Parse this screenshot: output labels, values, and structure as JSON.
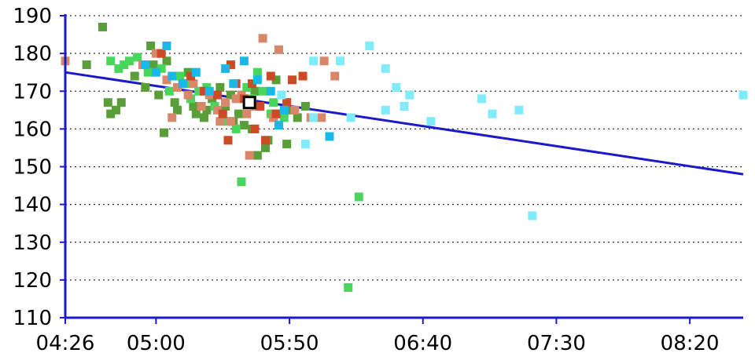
{
  "chart_data": {
    "type": "scatter",
    "title": "",
    "xlabel": "",
    "ylabel": "",
    "x_unit": "time (hh:mm)",
    "xlim": [
      "04:26",
      "08:40"
    ],
    "ylim": [
      110,
      190
    ],
    "x_ticks": [
      "04:26",
      "05:00",
      "05:50",
      "06:40",
      "07:30",
      "08:20"
    ],
    "y_ticks": [
      110,
      120,
      130,
      140,
      150,
      160,
      170,
      180,
      190
    ],
    "grid": "horizontal dotted",
    "legend": "none",
    "colors": {
      "axis": "#1a1acc",
      "trend": "#1a1acc",
      "grid": "#333333",
      "highlight_fill": "#ffffff",
      "highlight_stroke": "#000000"
    },
    "series": [
      {
        "color": "#5a9e3a",
        "points": [
          [
            "04:40",
            187
          ],
          [
            "04:34",
            177
          ],
          [
            "04:42",
            167
          ],
          [
            "04:45",
            165
          ],
          [
            "04:43",
            164
          ],
          [
            "04:47",
            167
          ],
          [
            "04:52",
            174
          ],
          [
            "04:56",
            171
          ],
          [
            "04:58",
            182
          ],
          [
            "04:59",
            177
          ],
          [
            "05:01",
            169
          ],
          [
            "05:04",
            178
          ],
          [
            "05:07",
            167
          ],
          [
            "05:08",
            165
          ],
          [
            "05:12",
            175
          ],
          [
            "05:14",
            166
          ],
          [
            "05:15",
            164
          ],
          [
            "05:18",
            163
          ],
          [
            "05:21",
            168
          ],
          [
            "05:24",
            171
          ],
          [
            "05:26",
            166
          ],
          [
            "05:28",
            169
          ],
          [
            "05:31",
            164
          ],
          [
            "05:33",
            161
          ],
          [
            "05:35",
            167
          ],
          [
            "05:37",
            170
          ],
          [
            "05:38",
            153
          ],
          [
            "05:41",
            155
          ],
          [
            "05:42",
            157
          ],
          [
            "05:44",
            163
          ],
          [
            "05:45",
            173
          ],
          [
            "05:47",
            164
          ],
          [
            "05:49",
            156
          ],
          [
            "05:50",
            165
          ],
          [
            "05:53",
            163
          ],
          [
            "05:56",
            166
          ],
          [
            "05:03",
            159
          ],
          [
            "05:10",
            172
          ],
          [
            "05:19",
            165
          ],
          [
            "05:29",
            162
          ],
          [
            "05:36",
            160
          ]
        ]
      },
      {
        "color": "#49d65c",
        "points": [
          [
            "04:43",
            178
          ],
          [
            "04:46",
            176
          ],
          [
            "04:48",
            177
          ],
          [
            "04:53",
            179
          ],
          [
            "04:57",
            175
          ],
          [
            "05:02",
            176
          ],
          [
            "05:05",
            170
          ],
          [
            "05:09",
            174
          ],
          [
            "05:11",
            172
          ],
          [
            "05:13",
            168
          ],
          [
            "05:16",
            170
          ],
          [
            "05:19",
            171
          ],
          [
            "05:22",
            166
          ],
          [
            "05:25",
            164
          ],
          [
            "05:27",
            162
          ],
          [
            "05:30",
            160
          ],
          [
            "05:32",
            169
          ],
          [
            "05:34",
            171
          ],
          [
            "05:36",
            168
          ],
          [
            "05:38",
            175
          ],
          [
            "05:40",
            170
          ],
          [
            "05:43",
            164
          ],
          [
            "05:44",
            167
          ],
          [
            "05:48",
            163
          ],
          [
            "05:32",
            146
          ],
          [
            "06:16",
            142
          ],
          [
            "06:12",
            118
          ],
          [
            "04:50",
            178
          ]
        ]
      },
      {
        "color": "#d8886a",
        "points": [
          [
            "04:26",
            178
          ],
          [
            "04:55",
            177
          ],
          [
            "05:00",
            180
          ],
          [
            "05:04",
            173
          ],
          [
            "05:08",
            171
          ],
          [
            "05:12",
            169
          ],
          [
            "05:14",
            172
          ],
          [
            "05:17",
            166
          ],
          [
            "05:20",
            169
          ],
          [
            "05:23",
            165
          ],
          [
            "05:26",
            167
          ],
          [
            "05:28",
            162
          ],
          [
            "05:30",
            168
          ],
          [
            "05:32",
            169
          ],
          [
            "05:34",
            164
          ],
          [
            "05:35",
            153
          ],
          [
            "05:37",
            166
          ],
          [
            "05:40",
            184
          ],
          [
            "05:44",
            163
          ],
          [
            "05:46",
            181
          ],
          [
            "05:49",
            167
          ],
          [
            "05:52",
            165
          ],
          [
            "05:58",
            163
          ],
          [
            "06:02",
            163
          ],
          [
            "06:03",
            178
          ],
          [
            "06:07",
            174
          ],
          [
            "05:24",
            162
          ],
          [
            "05:06",
            163
          ]
        ]
      },
      {
        "color": "#cc4a26",
        "points": [
          [
            "05:02",
            180
          ],
          [
            "05:13",
            174
          ],
          [
            "05:18",
            170
          ],
          [
            "05:23",
            169
          ],
          [
            "05:27",
            157
          ],
          [
            "05:28",
            177
          ],
          [
            "05:30",
            172
          ],
          [
            "05:33",
            168
          ],
          [
            "05:36",
            172
          ],
          [
            "05:37",
            160
          ],
          [
            "05:41",
            157
          ],
          [
            "05:43",
            174
          ],
          [
            "05:45",
            164
          ],
          [
            "05:49",
            167
          ],
          [
            "05:51",
            173
          ],
          [
            "05:55",
            174
          ],
          [
            "05:25",
            164
          ],
          [
            "05:39",
            166
          ]
        ]
      },
      {
        "color": "#1ab8e8",
        "points": [
          [
            "04:56",
            177
          ],
          [
            "05:00",
            175
          ],
          [
            "05:04",
            182
          ],
          [
            "05:06",
            174
          ],
          [
            "05:10",
            172
          ],
          [
            "05:26",
            176
          ],
          [
            "05:29",
            172
          ],
          [
            "05:33",
            178
          ],
          [
            "05:38",
            173
          ],
          [
            "05:43",
            170
          ],
          [
            "05:46",
            161
          ],
          [
            "05:48",
            165
          ],
          [
            "06:05",
            158
          ],
          [
            "05:20",
            170
          ],
          [
            "05:15",
            175
          ]
        ]
      },
      {
        "color": "#80ecfb",
        "points": [
          [
            "05:56",
            156
          ],
          [
            "05:59",
            178
          ],
          [
            "06:09",
            178
          ],
          [
            "06:13",
            163
          ],
          [
            "06:20",
            182
          ],
          [
            "06:26",
            165
          ],
          [
            "06:26",
            176
          ],
          [
            "06:30",
            171
          ],
          [
            "06:33",
            166
          ],
          [
            "06:35",
            169
          ],
          [
            "06:43",
            162
          ],
          [
            "07:02",
            168
          ],
          [
            "07:06",
            164
          ],
          [
            "07:16",
            165
          ],
          [
            "07:21",
            137
          ],
          [
            "08:40",
            169
          ],
          [
            "05:47",
            169
          ],
          [
            "05:59",
            163
          ]
        ]
      }
    ],
    "highlight_point": [
      "05:35",
      167
    ],
    "trend_line": {
      "start": [
        "04:26",
        175
      ],
      "end": [
        "08:40",
        148
      ]
    }
  }
}
